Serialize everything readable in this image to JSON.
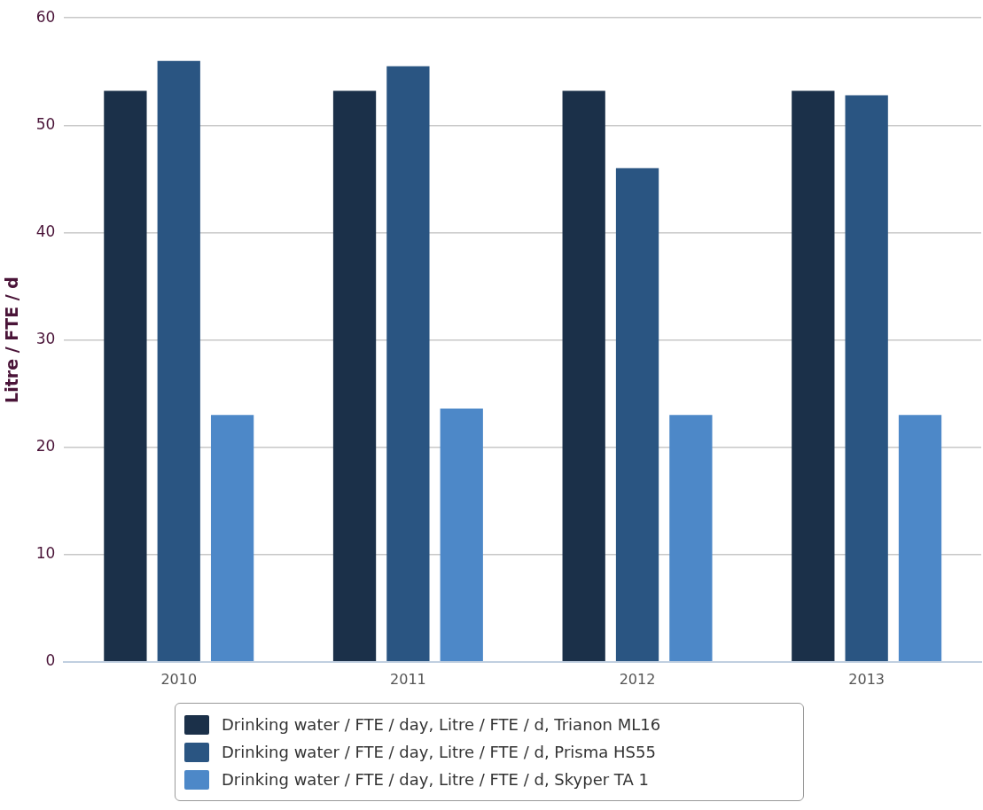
{
  "chart_data": {
    "type": "bar",
    "ylabel": "Litre / FTE / d",
    "categories": [
      "2010",
      "2011",
      "2012",
      "2013"
    ],
    "series": [
      {
        "name": "Drinking water / FTE / day, Litre / FTE / d, Trianon ML16",
        "color": "#1b3049",
        "values": [
          53.2,
          53.2,
          53.2,
          53.2
        ]
      },
      {
        "name": "Drinking water / FTE / day, Litre / FTE / d, Prisma HS55",
        "color": "#2a5582",
        "values": [
          56,
          55.5,
          46,
          52.8
        ]
      },
      {
        "name": "Drinking water / FTE / day, Litre / FTE / d, Skyper TA 1",
        "color": "#4d88c8",
        "values": [
          23,
          23.6,
          23,
          23
        ]
      }
    ],
    "ylim": [
      0,
      60
    ],
    "yticks": [
      0,
      10,
      20,
      30,
      40,
      50,
      60
    ],
    "grid": "y",
    "legend": "bottom"
  }
}
